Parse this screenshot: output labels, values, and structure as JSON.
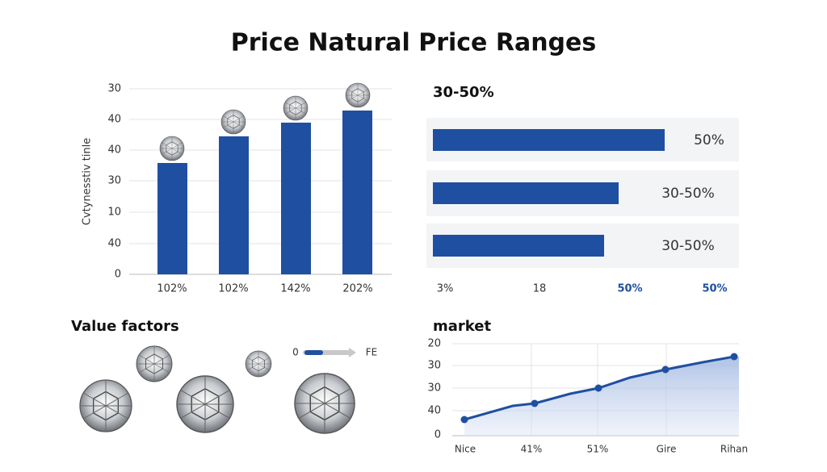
{
  "title": "Price Natural Price Ranges",
  "left_chart": {
    "axis_label": "Cvtynesstiv tinle",
    "y_labels": [
      "30",
      "40",
      "40",
      "30",
      "10",
      "40",
      "0"
    ],
    "categories": [
      "102%",
      "102%",
      "142%",
      "202%"
    ]
  },
  "right_chart": {
    "title": "30-50%",
    "bar_labels": [
      "50%",
      "30-50%",
      "30-50%"
    ],
    "x_labels": [
      "3%",
      "18",
      "50%",
      "50%"
    ]
  },
  "value_factors": {
    "title": "Value factors",
    "slider_start": "0",
    "slider_end": "FE"
  },
  "market": {
    "title": "market",
    "y_labels": [
      "20",
      "30",
      "30",
      "40",
      "0"
    ],
    "x_labels": [
      "Nice",
      "41%",
      "51%",
      "Gire",
      "Rihan"
    ]
  }
}
